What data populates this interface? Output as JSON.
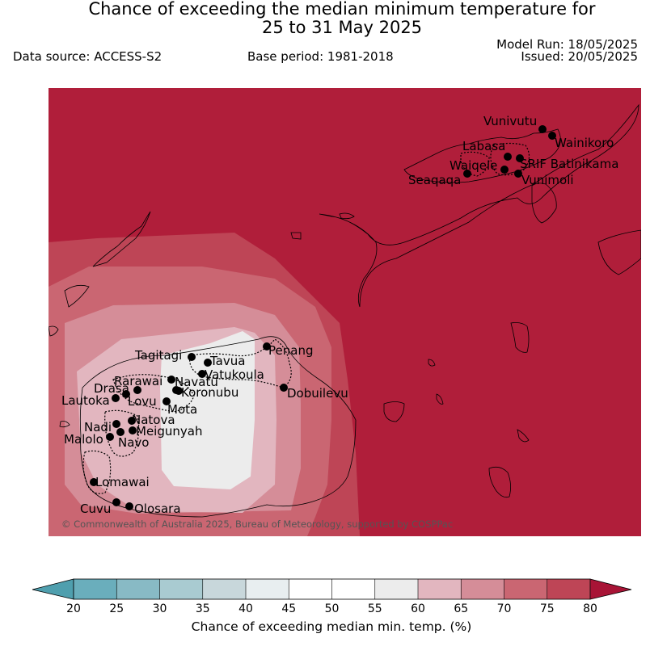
{
  "header": {
    "title_line1": "Chance of exceeding the median minimum temperature for",
    "title_line2": "25 to 31 May 2025",
    "data_source": "Data source: ACCESS-S2",
    "base_period": "Base period: 1981-2018",
    "model_run": "Model Run: 18/05/2025",
    "issued": "Issued: 20/05/2025"
  },
  "map": {
    "copyright": "© Commonwealth of Australia 2025, Bureau of Meteorology, supported by COSPPac",
    "background_color": "#b01e3a",
    "stations": [
      {
        "name": "Vunivutu"
      },
      {
        "name": "Wainikoro"
      },
      {
        "name": "Labasa"
      },
      {
        "name": "SRIF Batinikama"
      },
      {
        "name": "Waiqele"
      },
      {
        "name": "Seaqaqa"
      },
      {
        "name": "Vunimoli"
      },
      {
        "name": "Penang"
      },
      {
        "name": "Tagitagi"
      },
      {
        "name": "Tavua"
      },
      {
        "name": "Vatukoula"
      },
      {
        "name": "Rarawai"
      },
      {
        "name": "Navatu"
      },
      {
        "name": "Drasa"
      },
      {
        "name": "Koronubu"
      },
      {
        "name": "Lautoka"
      },
      {
        "name": "Lovu"
      },
      {
        "name": "Dobuilevu"
      },
      {
        "name": "Mota"
      },
      {
        "name": "Natova"
      },
      {
        "name": "Nadi"
      },
      {
        "name": "Meigunyah"
      },
      {
        "name": "Malolo"
      },
      {
        "name": "Navo"
      },
      {
        "name": "Lomawai"
      },
      {
        "name": "Cuvu"
      },
      {
        "name": "Olosara"
      }
    ]
  },
  "colorbar": {
    "title": "Chance of exceeding median min. temp. (%)",
    "ticks": [
      "20",
      "25",
      "30",
      "35",
      "40",
      "45",
      "50",
      "55",
      "60",
      "65",
      "70",
      "75",
      "80"
    ],
    "low_extend_color": "#4f9fae",
    "high_extend_color": "#a81436",
    "colors": [
      "#6aaebc",
      "#88bac5",
      "#a9cbd1",
      "#c8d7db",
      "#e8eef0",
      "#ffffff",
      "#ffffff",
      "#ececec",
      "#e2b6bf",
      "#d58d98",
      "#ca6672",
      "#be4556"
    ]
  }
}
